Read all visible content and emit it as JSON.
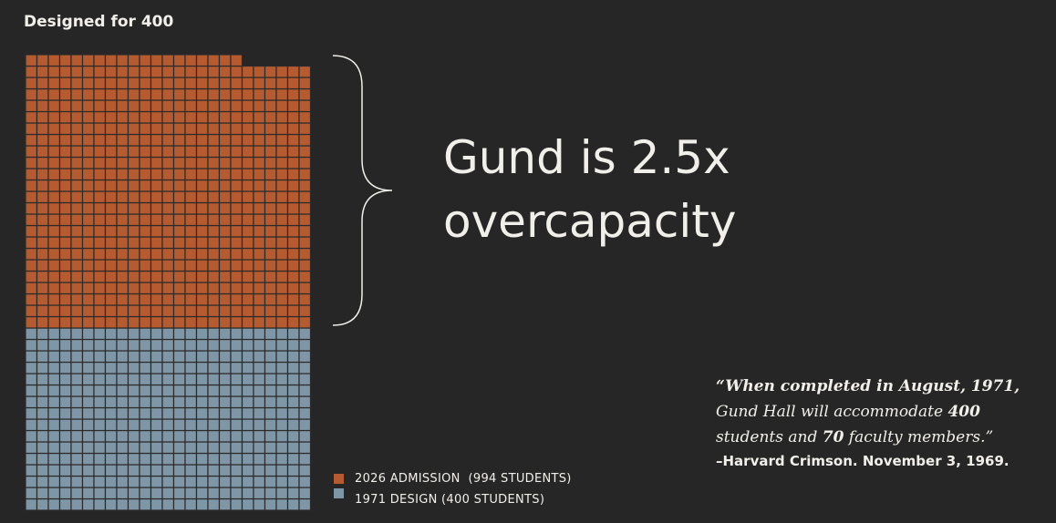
{
  "chart_data": {
    "type": "waffle",
    "title": "Designed for 400",
    "annotation": [
      "Gund is 2.5x",
      "overcapacity"
    ],
    "series": [
      {
        "name": "2026 ADMISSION  (994 STUDENTS)",
        "color": "#b65a2f",
        "values": [
          994
        ]
      },
      {
        "name": "1971 DESIGN (400 STUDENTS)",
        "color": "#7e96a5",
        "values": [
          400
        ]
      }
    ],
    "quote": [
      "“When completed in August, 1971,",
      "Gund Hall will accommodate ",
      "400",
      "students and ",
      "70",
      " faculty members.”"
    ],
    "attribution": "–Harvard Crimson. November 3, 1969."
  }
}
